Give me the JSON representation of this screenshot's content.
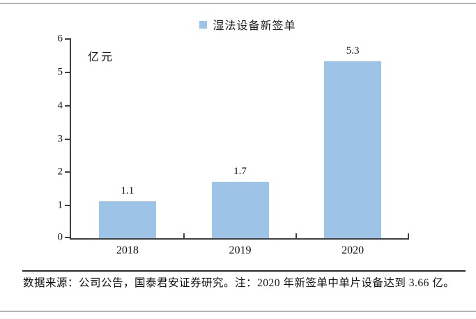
{
  "legend": {
    "label": "湿法设备新签单",
    "marker_color": "#9DC3E6"
  },
  "chart_data": {
    "type": "bar",
    "title": "湿法设备新签单",
    "unit_label": "亿元",
    "categories": [
      "2018",
      "2019",
      "2020"
    ],
    "values": [
      1.1,
      1.7,
      5.3
    ],
    "value_labels": [
      "1.1",
      "1.7",
      "5.3"
    ],
    "ylim": [
      0,
      6
    ],
    "yticks": [
      0,
      1,
      2,
      3,
      4,
      5,
      6
    ],
    "grid": false,
    "legend_position": "top",
    "bar_color": "#9DC3E6",
    "axis_color": "#404040"
  },
  "footer": {
    "note": "数据来源：公司公告，国泰君安证券研究。注：2020 年新签单中单片设备达到 3.66 亿。"
  }
}
